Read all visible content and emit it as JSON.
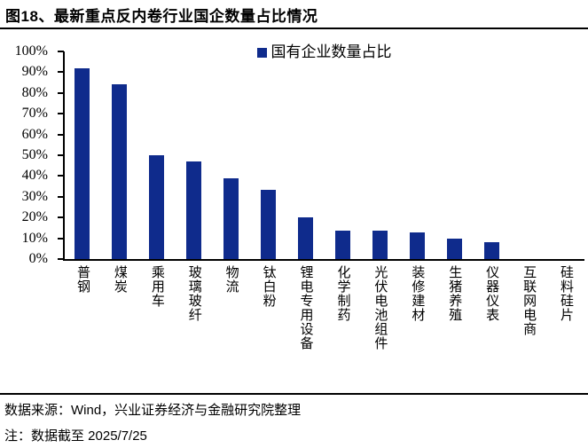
{
  "title": "图18、最新重点反内卷行业国企数量占比情况",
  "legend": {
    "label": "国有企业数量占比"
  },
  "colors": {
    "bar": "#0F2B8C",
    "axis": "#000000",
    "text": "#000000"
  },
  "chart_data": {
    "type": "bar",
    "title": "图18、最新重点反内卷行业国企数量占比情况",
    "legend": [
      "国有企业数量占比"
    ],
    "legend_position": "top-center",
    "categories": [
      "普钢",
      "煤炭",
      "乘用车",
      "玻璃玻纤",
      "物流",
      "钛白粉",
      "锂电专用设备",
      "化学制药",
      "光伏电池组件",
      "装修建材",
      "生猪养殖",
      "仪器仪表",
      "互联网电商",
      "硅料硅片"
    ],
    "values": [
      92,
      84,
      50,
      47,
      39,
      33.5,
      20,
      13.5,
      13.5,
      13,
      10,
      8,
      0,
      0
    ],
    "xlabel": "",
    "ylabel": "",
    "ylim": [
      0,
      100
    ],
    "ytick_step": 10,
    "ytick_labels": [
      "0%",
      "10%",
      "20%",
      "30%",
      "40%",
      "50%",
      "60%",
      "70%",
      "80%",
      "90%",
      "100%"
    ],
    "grid": false,
    "bar_color": "#0F2B8C"
  },
  "footer": {
    "source": "数据来源：Wind，兴业证券经济与金融研究院整理",
    "note": "注：数据截至 2025/7/25"
  }
}
